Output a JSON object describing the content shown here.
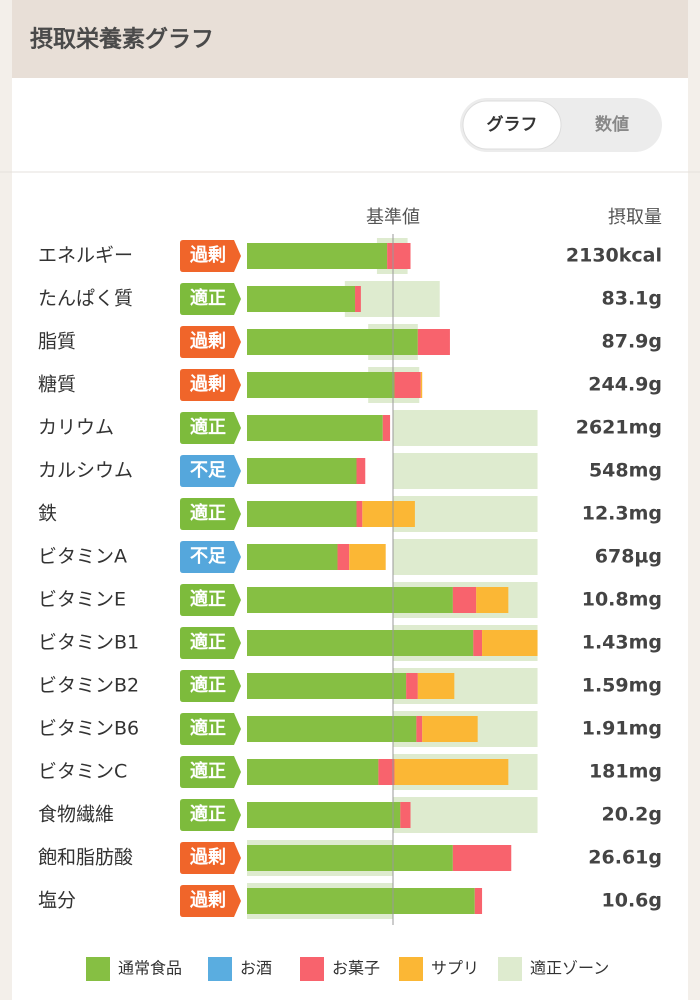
{
  "chart_data": {
    "type": "stacked-bar",
    "title": "摂取栄養素グラフ",
    "toggle": [
      "グラフ",
      "数値"
    ],
    "reference_label": "基準値",
    "amount_label": "摂取量",
    "reference": 100,
    "xlim": [
      0,
      200
    ],
    "categories": [
      "エネルギー",
      "たんぱく質",
      "脂質",
      "糖質",
      "カリウム",
      "カルシウム",
      "鉄",
      "ビタミンA",
      "ビタミンE",
      "ビタミンB1",
      "ビタミンB2",
      "ビタミンB6",
      "ビタミンC",
      "食物繊維",
      "飽和脂肪酸",
      "塩分"
    ],
    "badges": [
      {
        "label": "過剰",
        "color": "#f0652a"
      },
      {
        "label": "適正",
        "color": "#7dbb3c"
      },
      {
        "label": "過剰",
        "color": "#f0652a"
      },
      {
        "label": "過剰",
        "color": "#f0652a"
      },
      {
        "label": "適正",
        "color": "#7dbb3c"
      },
      {
        "label": "不足",
        "color": "#55a7dc"
      },
      {
        "label": "適正",
        "color": "#7dbb3c"
      },
      {
        "label": "不足",
        "color": "#55a7dc"
      },
      {
        "label": "適正",
        "color": "#7dbb3c"
      },
      {
        "label": "適正",
        "color": "#7dbb3c"
      },
      {
        "label": "適正",
        "color": "#7dbb3c"
      },
      {
        "label": "適正",
        "color": "#7dbb3c"
      },
      {
        "label": "適正",
        "color": "#7dbb3c"
      },
      {
        "label": "適正",
        "color": "#7dbb3c"
      },
      {
        "label": "過剰",
        "color": "#f0652a"
      },
      {
        "label": "過剰",
        "color": "#f0652a"
      }
    ],
    "amounts": [
      "2130kcal",
      "83.1g",
      "87.9g",
      "244.9g",
      "2621mg",
      "548mg",
      "12.3mg",
      "678µg",
      "10.8mg",
      "1.43mg",
      "1.59mg",
      "1.91mg",
      "181mg",
      "20.2g",
      "26.61g",
      "10.6g"
    ],
    "series": [
      {
        "name": "通常食品",
        "color": "#86bf43",
        "values": [
          96,
          74,
          117,
          101,
          93,
          75,
          75,
          62,
          141,
          155,
          109,
          116,
          90,
          105,
          141,
          156
        ]
      },
      {
        "name": "お酒",
        "color": "#5aade0",
        "values": [
          0,
          0,
          0,
          0,
          0,
          0,
          0,
          0,
          0,
          0,
          0,
          0,
          0,
          0,
          0,
          0
        ]
      },
      {
        "name": "お菓子",
        "color": "#f8636d",
        "values": [
          16,
          4,
          22,
          18,
          5,
          6,
          4,
          8,
          16,
          6,
          8,
          4,
          11,
          7,
          40,
          5
        ]
      },
      {
        "name": "サプリ",
        "color": "#fbb735",
        "values": [
          0,
          0,
          0,
          1,
          0,
          0,
          36,
          25,
          22,
          38,
          25,
          38,
          78,
          0,
          0,
          0
        ]
      }
    ],
    "zone": {
      "name": "適正ゾーン",
      "color": "#deebcf",
      "ranges": [
        [
          89,
          110
        ],
        [
          67,
          132
        ],
        [
          83,
          117
        ],
        [
          83,
          118
        ],
        [
          100,
          199
        ],
        [
          100,
          199
        ],
        [
          100,
          199
        ],
        [
          100,
          199
        ],
        [
          100,
          199
        ],
        [
          100,
          199
        ],
        [
          100,
          199
        ],
        [
          100,
          199
        ],
        [
          100,
          199
        ],
        [
          100,
          199
        ],
        [
          0,
          100
        ],
        [
          0,
          100
        ]
      ]
    }
  }
}
